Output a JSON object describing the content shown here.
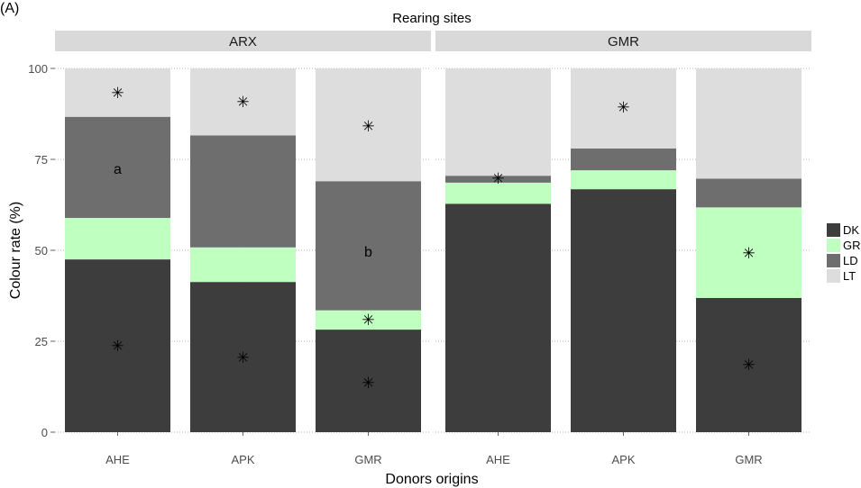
{
  "chart_data": {
    "type": "bar",
    "stacked": true,
    "panel_label": "(A)",
    "title": "Rearing sites",
    "xlabel": "Donors origins",
    "ylabel": "Colour rate (%)",
    "ylim": [
      0,
      100
    ],
    "yticks": [
      0,
      25,
      50,
      75,
      100
    ],
    "grid": true,
    "legend_position": "right",
    "legend": [
      "DK",
      "GR",
      "LD",
      "LT"
    ],
    "colors": {
      "DK": "#3d3d3d",
      "GR": "#bfffbf",
      "LD": "#6e6e6e",
      "LT": "#dddddd",
      "strip": "#d9d9d9",
      "grid": "#b3b3b3"
    },
    "facets": [
      {
        "name": "ARX",
        "categories": [
          "AHE",
          "APK",
          "GMR"
        ],
        "series": [
          {
            "name": "DK",
            "values": [
              47.5,
              41.3,
              28.2
            ]
          },
          {
            "name": "GR",
            "values": [
              11.4,
              9.5,
              5.3
            ]
          },
          {
            "name": "LD",
            "values": [
              27.8,
              30.8,
              35.5
            ]
          },
          {
            "name": "LT",
            "values": [
              13.3,
              18.4,
              31.0
            ]
          }
        ],
        "annotations": [
          {
            "category": "AHE",
            "y": 93.3,
            "text": "✳"
          },
          {
            "category": "AHE",
            "y": 72.5,
            "text": "a"
          },
          {
            "category": "AHE",
            "y": 23.8,
            "text": "✳"
          },
          {
            "category": "APK",
            "y": 90.9,
            "text": "✳"
          },
          {
            "category": "APK",
            "y": 20.6,
            "text": "✳"
          },
          {
            "category": "GMR",
            "y": 84.2,
            "text": "✳"
          },
          {
            "category": "GMR",
            "y": 49.8,
            "text": "b"
          },
          {
            "category": "GMR",
            "y": 30.9,
            "text": "✳"
          },
          {
            "category": "GMR",
            "y": 13.6,
            "text": "✳"
          }
        ]
      },
      {
        "name": "GMR",
        "categories": [
          "AHE",
          "APK",
          "GMR"
        ],
        "series": [
          {
            "name": "DK",
            "values": [
              62.8,
              66.8,
              36.9
            ]
          },
          {
            "name": "GR",
            "values": [
              5.8,
              5.2,
              24.9
            ]
          },
          {
            "name": "LD",
            "values": [
              1.9,
              6.0,
              7.9
            ]
          },
          {
            "name": "LT",
            "values": [
              29.5,
              22.0,
              30.3
            ]
          }
        ],
        "annotations": [
          {
            "category": "AHE",
            "y": 69.8,
            "text": "✳"
          },
          {
            "category": "APK",
            "y": 89.3,
            "text": "✳"
          },
          {
            "category": "GMR",
            "y": 49.3,
            "text": "✳"
          },
          {
            "category": "GMR",
            "y": 18.6,
            "text": "✳"
          }
        ]
      }
    ]
  }
}
